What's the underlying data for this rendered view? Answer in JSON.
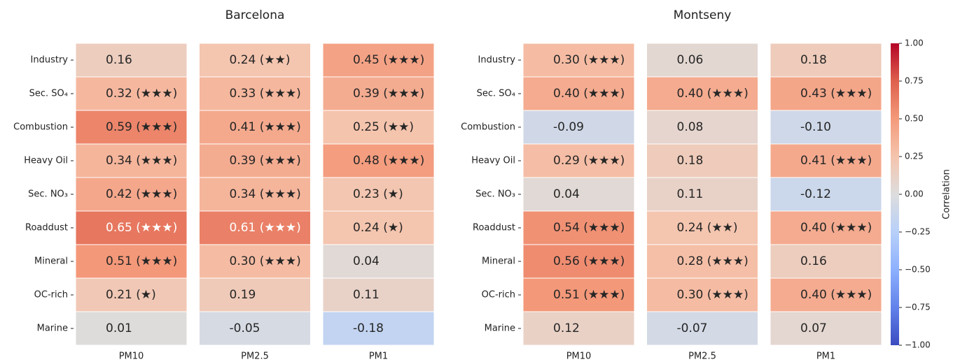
{
  "chart_data": [
    {
      "type": "heatmap",
      "title": "Barcelona",
      "x_categories": [
        "PM10",
        "PM2.5",
        "PM1"
      ],
      "y_categories": [
        "Industry",
        "Sec. SO₄",
        "Combustion",
        "Heavy Oil",
        "Sec. NO₃",
        "Roaddust",
        "Mineral",
        "OC-rich",
        "Marine"
      ],
      "values": [
        [
          0.16,
          0.24,
          0.45
        ],
        [
          0.32,
          0.33,
          0.39
        ],
        [
          0.59,
          0.41,
          0.25
        ],
        [
          0.34,
          0.39,
          0.48
        ],
        [
          0.42,
          0.34,
          0.23
        ],
        [
          0.65,
          0.61,
          0.24
        ],
        [
          0.51,
          0.3,
          0.04
        ],
        [
          0.21,
          0.19,
          0.11
        ],
        [
          0.01,
          -0.05,
          -0.18
        ]
      ],
      "value_labels": [
        [
          "0.16",
          "0.24 (★★)",
          "0.45 (★★★)"
        ],
        [
          "0.32 (★★★)",
          "0.33 (★★★)",
          "0.39 (★★★)"
        ],
        [
          "0.59 (★★★)",
          "0.41 (★★★)",
          "0.25 (★★)"
        ],
        [
          "0.34 (★★★)",
          "0.39 (★★★)",
          "0.48 (★★★)"
        ],
        [
          "0.42 (★★★)",
          "0.34 (★★★)",
          "0.23 (★)"
        ],
        [
          "0.65 (★★★)",
          "0.61 (★★★)",
          "0.24 (★)"
        ],
        [
          "0.51 (★★★)",
          "0.30 (★★★)",
          "0.04"
        ],
        [
          "0.21 (★)",
          "0.19",
          "0.11"
        ],
        [
          "0.01",
          "-0.05",
          "-0.18"
        ]
      ]
    },
    {
      "type": "heatmap",
      "title": "Montseny",
      "x_categories": [
        "PM10",
        "PM2.5",
        "PM1"
      ],
      "y_categories": [
        "Industry",
        "Sec. SO₄",
        "Combustion",
        "Heavy Oil",
        "Sec. NO₃",
        "Roaddust",
        "Mineral",
        "OC-rich",
        "Marine"
      ],
      "values": [
        [
          0.3,
          0.06,
          0.18
        ],
        [
          0.4,
          0.4,
          0.43
        ],
        [
          -0.09,
          0.08,
          -0.1
        ],
        [
          0.29,
          0.18,
          0.41
        ],
        [
          0.04,
          0.11,
          -0.12
        ],
        [
          0.54,
          0.24,
          0.4
        ],
        [
          0.56,
          0.28,
          0.16
        ],
        [
          0.51,
          0.3,
          0.4
        ],
        [
          0.12,
          -0.07,
          0.07
        ]
      ],
      "value_labels": [
        [
          "0.30 (★★★)",
          "0.06",
          "0.18"
        ],
        [
          "0.40 (★★★)",
          "0.40 (★★★)",
          "0.43 (★★★)"
        ],
        [
          "-0.09",
          "0.08",
          "-0.10"
        ],
        [
          "0.29 (★★★)",
          "0.18",
          "0.41 (★★★)"
        ],
        [
          "0.04",
          "0.11",
          "-0.12"
        ],
        [
          "0.54 (★★★)",
          "0.24 (★★)",
          "0.40 (★★★)"
        ],
        [
          "0.56 (★★★)",
          "0.28 (★★★)",
          "0.16"
        ],
        [
          "0.51 (★★★)",
          "0.30 (★★★)",
          "0.40 (★★★)"
        ],
        [
          "0.12",
          "-0.07",
          "0.07"
        ]
      ]
    }
  ],
  "colorbar": {
    "label": "Correlation",
    "colormap": "coolwarm",
    "ylim": [
      -1,
      1
    ],
    "yticks": [
      {
        "value": -1,
        "label": "−1.00"
      },
      {
        "value": -0.75,
        "label": "−0.75"
      },
      {
        "value": -0.5,
        "label": "−0.50"
      },
      {
        "value": -0.25,
        "label": "−0.25"
      },
      {
        "value": 0,
        "label": "0.00"
      },
      {
        "value": 0.25,
        "label": "0.25"
      },
      {
        "value": 0.5,
        "label": "0.50"
      },
      {
        "value": 0.75,
        "label": "0.75"
      },
      {
        "value": 1,
        "label": "1.00"
      }
    ]
  }
}
